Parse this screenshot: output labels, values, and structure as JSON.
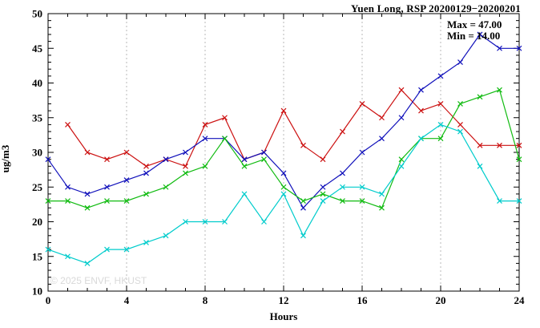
{
  "title": "Yuen Long, RSP 20200129−20200201",
  "annotations": {
    "max": "Max = 47.00",
    "min": "Min = 14.00"
  },
  "watermark": "© 2025 ENVF, HKUST",
  "chart_data": {
    "type": "line",
    "title": "Yuen Long, RSP 20200129−20200201",
    "xlabel": "Hours",
    "ylabel": "ug/m3",
    "xlim": [
      0,
      24
    ],
    "ylim": [
      10,
      50
    ],
    "xticks": [
      0,
      4,
      8,
      12,
      16,
      20,
      24
    ],
    "yticks": [
      10,
      15,
      20,
      25,
      30,
      35,
      40,
      45,
      50
    ],
    "grid": "vertical-dashed-at-major-xticks",
    "legend": "none",
    "marker": "x",
    "x": [
      0,
      1,
      2,
      3,
      4,
      5,
      6,
      7,
      8,
      9,
      10,
      11,
      12,
      13,
      14,
      15,
      16,
      17,
      18,
      19,
      20,
      21,
      22,
      23,
      24
    ],
    "series": [
      {
        "name": "station-red",
        "color": "#cc1111",
        "values": [
          null,
          34,
          30,
          29,
          30,
          28,
          29,
          28,
          34,
          35,
          29,
          30,
          36,
          31,
          29,
          33,
          37,
          35,
          39,
          36,
          37,
          34,
          31,
          31,
          31
        ]
      },
      {
        "name": "station-blue",
        "color": "#1111bb",
        "values": [
          29,
          25,
          24,
          25,
          26,
          27,
          29,
          30,
          32,
          32,
          29,
          30,
          27,
          22,
          25,
          27,
          30,
          32,
          35,
          39,
          41,
          43,
          47,
          45,
          45
        ]
      },
      {
        "name": "station-green",
        "color": "#11bb11",
        "values": [
          23,
          23,
          22,
          23,
          23,
          24,
          25,
          27,
          28,
          32,
          28,
          29,
          25,
          23,
          24,
          23,
          23,
          22,
          29,
          32,
          32,
          37,
          38,
          39,
          29
        ]
      },
      {
        "name": "station-cyan",
        "color": "#00cccc",
        "values": [
          16,
          15,
          14,
          16,
          16,
          17,
          18,
          20,
          20,
          20,
          24,
          20,
          24,
          18,
          23,
          25,
          25,
          24,
          28,
          32,
          34,
          33,
          28,
          23,
          23
        ]
      }
    ]
  }
}
